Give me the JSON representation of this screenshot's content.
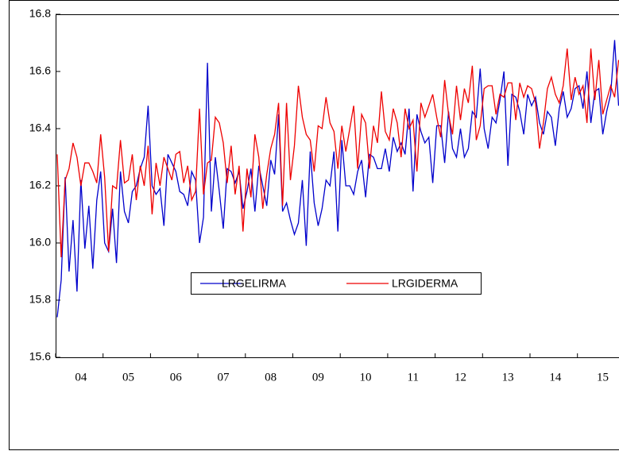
{
  "chart_data": {
    "type": "line",
    "categories": [
      null,
      null,
      null,
      null,
      null,
      null,
      "04",
      null,
      null,
      null,
      null,
      null,
      null,
      null,
      null,
      null,
      null,
      null,
      "05",
      null,
      null,
      null,
      null,
      null,
      null,
      null,
      null,
      null,
      null,
      null,
      "06",
      null,
      null,
      null,
      null,
      null,
      null,
      null,
      null,
      null,
      null,
      null,
      "07",
      null,
      null,
      null,
      null,
      null,
      null,
      null,
      null,
      null,
      null,
      null,
      "08",
      null,
      null,
      null,
      null,
      null,
      null,
      null,
      null,
      null,
      null,
      null,
      "09",
      null,
      null,
      null,
      null,
      null,
      null,
      null,
      null,
      null,
      null,
      null,
      "10",
      null,
      null,
      null,
      null,
      null,
      null,
      null,
      null,
      null,
      null,
      null,
      "11",
      null,
      null,
      null,
      null,
      null,
      null,
      null,
      null,
      null,
      null,
      null,
      "12",
      null,
      null,
      null,
      null,
      null,
      null,
      null,
      null,
      null,
      null,
      null,
      "13",
      null,
      null,
      null,
      null,
      null,
      null,
      null,
      null,
      null,
      null,
      null,
      "14",
      null,
      null,
      null,
      null,
      null,
      null,
      null,
      null,
      null,
      null,
      null,
      "15",
      null,
      null,
      null,
      null
    ],
    "series": [
      {
        "name": "LRGELIRMA",
        "color": "#0000cc",
        "values": [
          15.74,
          15.87,
          16.23,
          15.9,
          16.08,
          15.83,
          16.22,
          15.98,
          16.13,
          15.91,
          16.15,
          16.25,
          16.0,
          15.97,
          16.12,
          15.93,
          16.25,
          16.11,
          16.07,
          16.18,
          16.2,
          16.26,
          16.3,
          16.48,
          16.2,
          16.17,
          16.19,
          16.06,
          16.31,
          16.28,
          16.25,
          16.18,
          16.17,
          16.13,
          16.25,
          16.22,
          16.0,
          16.09,
          16.63,
          16.11,
          16.3,
          16.18,
          16.05,
          16.26,
          16.25,
          16.21,
          16.25,
          16.12,
          16.18,
          16.26,
          16.11,
          16.27,
          16.2,
          16.13,
          16.29,
          16.24,
          16.45,
          16.11,
          16.14,
          16.08,
          16.03,
          16.07,
          16.22,
          15.99,
          16.32,
          16.14,
          16.06,
          16.12,
          16.22,
          16.2,
          16.32,
          16.04,
          16.36,
          16.2,
          16.2,
          16.17,
          16.25,
          16.29,
          16.16,
          16.31,
          16.3,
          16.26,
          16.26,
          16.33,
          16.25,
          16.37,
          16.32,
          16.35,
          16.31,
          16.47,
          16.18,
          16.45,
          16.39,
          16.35,
          16.37,
          16.21,
          16.41,
          16.41,
          16.28,
          16.46,
          16.33,
          16.3,
          16.4,
          16.3,
          16.33,
          16.46,
          16.44,
          16.61,
          16.4,
          16.33,
          16.44,
          16.42,
          16.5,
          16.6,
          16.27,
          16.52,
          16.51,
          16.46,
          16.38,
          16.52,
          16.48,
          16.51,
          16.42,
          16.38,
          16.46,
          16.44,
          16.34,
          16.47,
          16.53,
          16.44,
          16.47,
          16.54,
          16.55,
          16.47,
          16.6,
          16.42,
          16.53,
          16.54,
          16.38,
          16.46,
          16.52,
          16.71,
          16.48
        ]
      },
      {
        "name": "LRGIDERMA",
        "color": "#ee0000",
        "values": [
          16.31,
          15.95,
          16.22,
          16.26,
          16.35,
          16.3,
          16.2,
          16.28,
          16.28,
          16.25,
          16.21,
          16.38,
          16.23,
          15.97,
          16.2,
          16.19,
          16.36,
          16.21,
          16.22,
          16.31,
          16.15,
          16.27,
          16.2,
          16.34,
          16.1,
          16.28,
          16.2,
          16.3,
          16.26,
          16.22,
          16.31,
          16.32,
          16.21,
          16.27,
          16.15,
          16.18,
          16.47,
          16.17,
          16.28,
          16.29,
          16.44,
          16.42,
          16.35,
          16.21,
          16.34,
          16.17,
          16.27,
          16.04,
          16.26,
          16.16,
          16.38,
          16.3,
          16.12,
          16.24,
          16.33,
          16.38,
          16.49,
          16.13,
          16.49,
          16.22,
          16.34,
          16.55,
          16.44,
          16.38,
          16.36,
          16.25,
          16.41,
          16.4,
          16.51,
          16.42,
          16.39,
          16.26,
          16.41,
          16.32,
          16.4,
          16.48,
          16.26,
          16.45,
          16.42,
          16.26,
          16.41,
          16.35,
          16.53,
          16.39,
          16.36,
          16.47,
          16.42,
          16.3,
          16.47,
          16.4,
          16.43,
          16.25,
          16.49,
          16.44,
          16.48,
          16.52,
          16.44,
          16.37,
          16.57,
          16.45,
          16.38,
          16.55,
          16.43,
          16.54,
          16.49,
          16.62,
          16.36,
          16.41,
          16.54,
          16.55,
          16.55,
          16.45,
          16.52,
          16.51,
          16.56,
          16.56,
          16.43,
          16.56,
          16.51,
          16.55,
          16.54,
          16.49,
          16.33,
          16.42,
          16.54,
          16.58,
          16.52,
          16.49,
          16.55,
          16.68,
          16.5,
          16.58,
          16.52,
          16.55,
          16.42,
          16.68,
          16.5,
          16.64,
          16.45,
          16.5,
          16.55,
          16.51,
          16.64
        ]
      }
    ],
    "ylim": [
      15.6,
      16.8
    ],
    "yticks": [
      15.6,
      15.8,
      {
        "value": 16,
        "label": "16.0"
      },
      16.2,
      16.4,
      16.6,
      16.8
    ],
    "legend": "bottom"
  }
}
